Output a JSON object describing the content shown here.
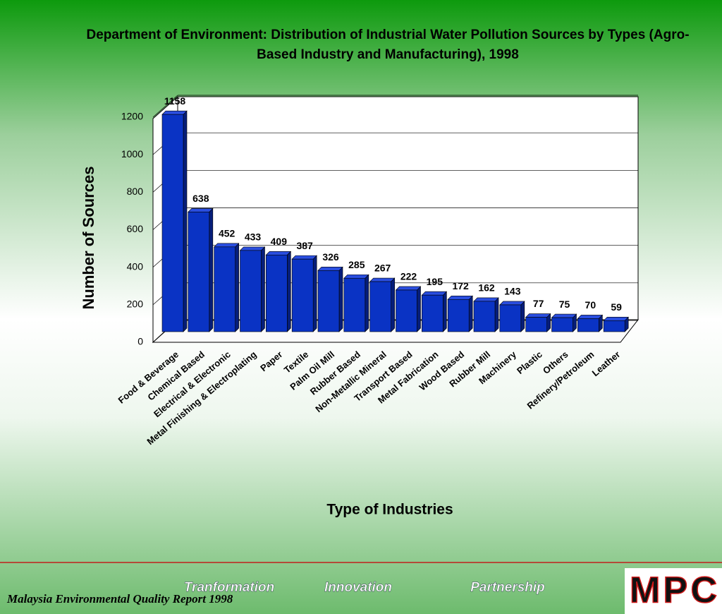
{
  "chart_data": {
    "type": "bar",
    "title": "Department of Environment: Distribution of Industrial Water Pollution Sources by Types (Agro-Based Industry and Manufacturing), 1998",
    "x_label": "Type of Industries",
    "y_label": "Number of Sources",
    "categories": [
      "Food & Beverage",
      "Chemical Based",
      "Electrical & Electronic",
      "Metal Finishing & Electroplating",
      "Paper",
      "Textile",
      "Palm Oil Mill",
      "Rubber Based",
      "Non-Metallic Mineral",
      "Transport Based",
      "Metal Fabrication",
      "Wood Based",
      "Rubber Mill",
      "Machinery",
      "Plastic",
      "Others",
      "Refinery/Petroleum",
      "Leather"
    ],
    "values": [
      1158,
      638,
      452,
      433,
      409,
      387,
      326,
      285,
      267,
      222,
      195,
      172,
      162,
      143,
      77,
      75,
      70,
      59
    ],
    "color": "#0a33c4",
    "ylim": [
      0,
      1200
    ],
    "yticks": [
      0,
      200,
      400,
      600,
      800,
      1000,
      1200
    ],
    "grid": true
  },
  "footer": {
    "slogans": [
      "Tranformation",
      "Innovation",
      "Partnership"
    ],
    "source": "Malaysia Environmental Quality Report 1998",
    "logo": "MPC"
  }
}
